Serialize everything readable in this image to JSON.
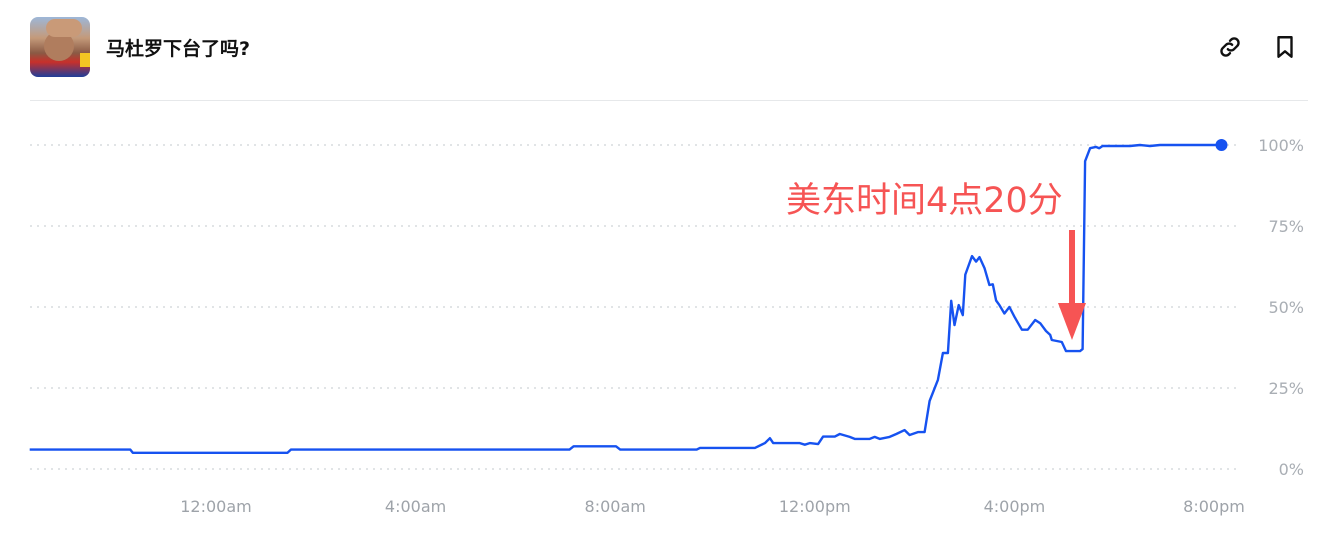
{
  "header": {
    "title": "马杜罗下台了吗?",
    "icons": [
      "avatar-image",
      "link-icon",
      "bookmark-icon"
    ]
  },
  "annotation": {
    "text": "美东时间4点20分",
    "color": "#f65454",
    "arrow": "down-arrow"
  },
  "chart_data": {
    "type": "line",
    "title": "",
    "xlabel": "",
    "ylabel": "",
    "ylim": [
      0,
      100
    ],
    "y_ticks": [
      "0%",
      "25%",
      "50%",
      "75%",
      "100%"
    ],
    "x_ticks": [
      "12:00am",
      "4:00am",
      "8:00am",
      "12:00pm",
      "4:00pm",
      "8:00pm"
    ],
    "grid": "horizontal dotted",
    "line_color": "#1652f0",
    "end_marker": true,
    "series": [
      {
        "points": [
          [
            "20:16",
            6
          ],
          [
            "22:17",
            6
          ],
          [
            "22:20",
            5
          ],
          [
            "01:26",
            5
          ],
          [
            "01:30",
            6
          ],
          [
            "07:05",
            6
          ],
          [
            "07:10",
            7
          ],
          [
            "08:01",
            7
          ],
          [
            "08:06",
            6
          ],
          [
            "09:38",
            6
          ],
          [
            "09:42",
            6.5
          ],
          [
            "10:48",
            6.5
          ],
          [
            "11:00",
            8
          ],
          [
            "11:06",
            9.5
          ],
          [
            "11:10",
            8
          ],
          [
            "11:42",
            8
          ],
          [
            "11:48",
            7.5
          ],
          [
            "11:54",
            8
          ],
          [
            "12:04",
            7.7
          ],
          [
            "12:10",
            10
          ],
          [
            "12:24",
            10
          ],
          [
            "12:30",
            10.8
          ],
          [
            "12:42",
            9.9
          ],
          [
            "12:48",
            9.3
          ],
          [
            "13:06",
            9.3
          ],
          [
            "13:12",
            9.9
          ],
          [
            "13:18",
            9.3
          ],
          [
            "13:30",
            9.9
          ],
          [
            "13:38",
            10.8
          ],
          [
            "13:48",
            12
          ],
          [
            "13:54",
            10.5
          ],
          [
            "14:04",
            11.4
          ],
          [
            "14:12",
            11.4
          ],
          [
            "14:18",
            21
          ],
          [
            "14:28",
            27.5
          ],
          [
            "14:34",
            35.8
          ],
          [
            "14:40",
            35.8
          ],
          [
            "14:44",
            51.9
          ],
          [
            "14:48",
            44.4
          ],
          [
            "14:53",
            50.6
          ],
          [
            "14:58",
            47.5
          ],
          [
            "15:01",
            60
          ],
          [
            "15:09",
            65.7
          ],
          [
            "15:14",
            64
          ],
          [
            "15:18",
            65.4
          ],
          [
            "15:24",
            62
          ],
          [
            "15:30",
            56.8
          ],
          [
            "15:34",
            57
          ],
          [
            "15:38",
            52
          ],
          [
            "15:42",
            50.6
          ],
          [
            "15:48",
            48
          ],
          [
            "15:54",
            50
          ],
          [
            "16:00",
            47
          ],
          [
            "16:09",
            43
          ],
          [
            "16:16",
            43
          ],
          [
            "16:25",
            46
          ],
          [
            "16:31",
            45
          ],
          [
            "16:38",
            42.6
          ],
          [
            "16:43",
            41.4
          ],
          [
            "16:45",
            39.8
          ],
          [
            "16:57",
            39.2
          ],
          [
            "17:02",
            36.4
          ],
          [
            "17:19",
            36.4
          ],
          [
            "17:22",
            37
          ],
          [
            "17:25",
            95
          ],
          [
            "17:31",
            99
          ],
          [
            "17:38",
            99.4
          ],
          [
            "17:42",
            99
          ],
          [
            "17:46",
            99.7
          ],
          [
            "18:19",
            99.7
          ],
          [
            "18:31",
            100
          ],
          [
            "18:43",
            99.7
          ],
          [
            "18:55",
            100
          ],
          [
            "20:09",
            100
          ]
        ]
      }
    ]
  }
}
